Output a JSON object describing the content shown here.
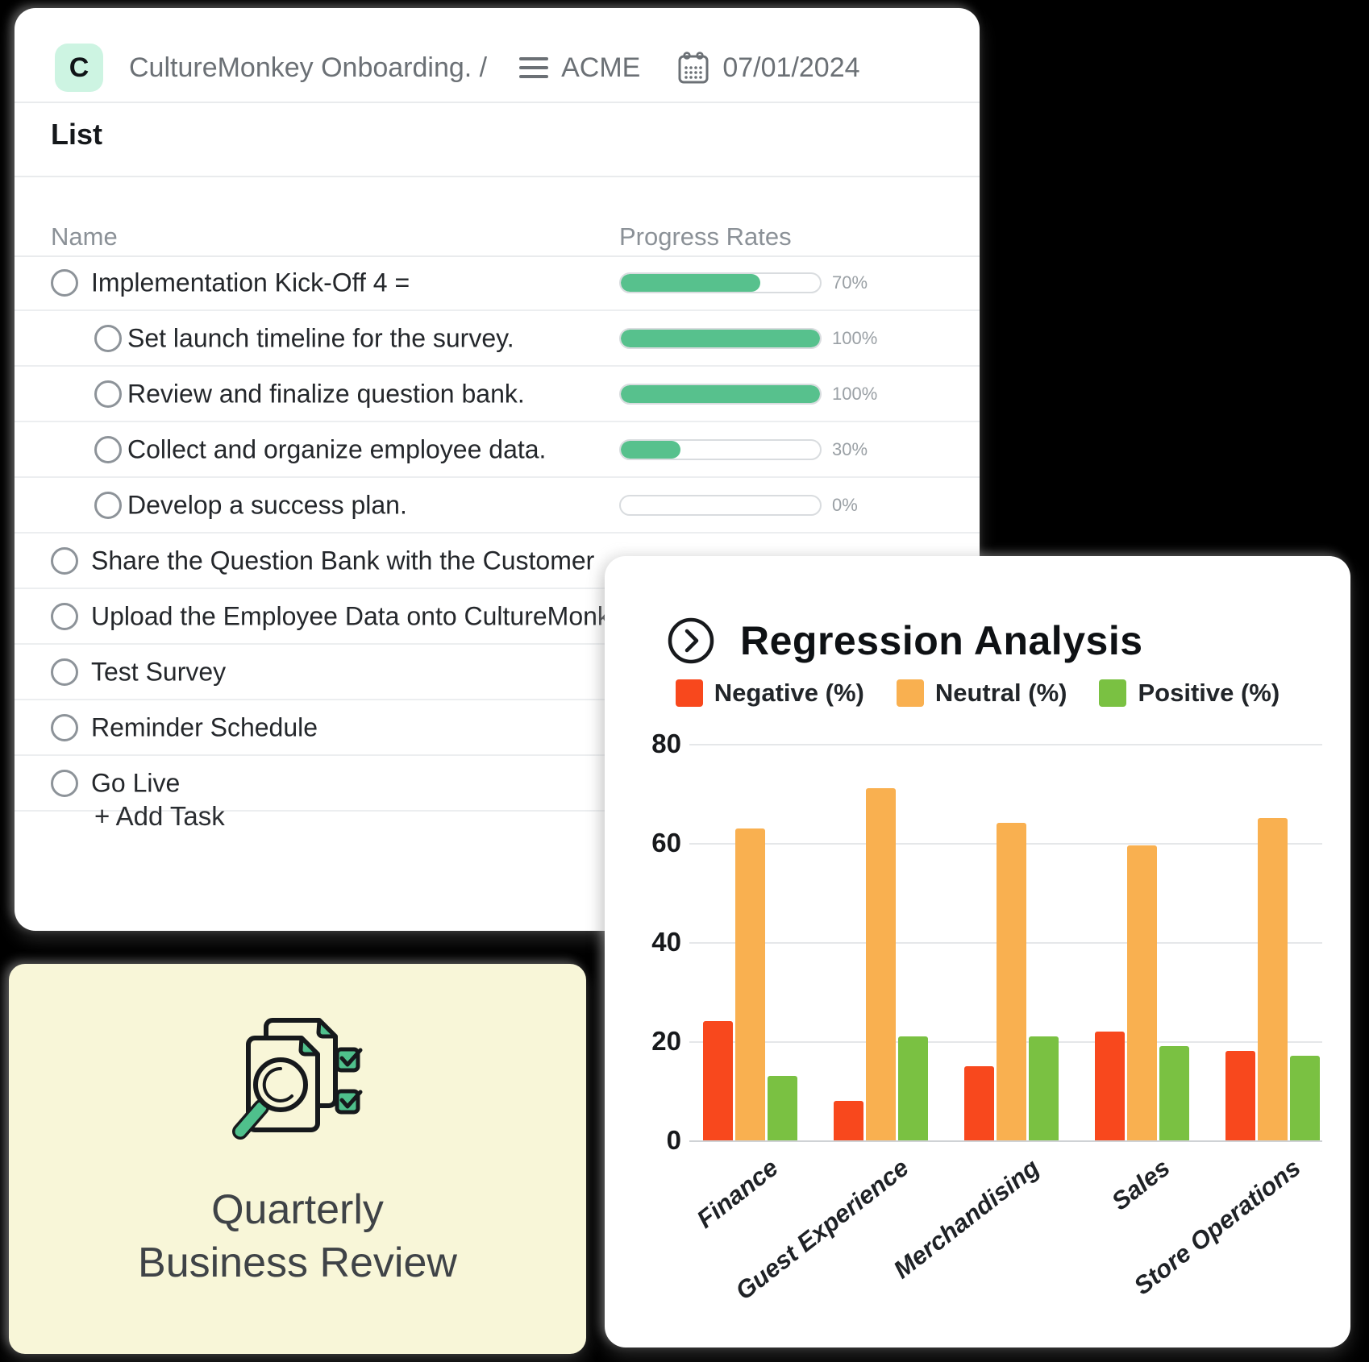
{
  "board": {
    "badge": "C",
    "badge_bg": "#cdf4e2",
    "title": "CultureMonkey Onboarding. /",
    "client": "ACME",
    "date": "07/01/2024",
    "section_title": "List",
    "columns": {
      "name": "Name",
      "progress": "Progress Rates"
    },
    "progress_color": "#57c18d",
    "tasks": [
      {
        "label": "Implementation Kick-Off 4 =",
        "indent": 0,
        "progress": 70,
        "progress_label": "70%"
      },
      {
        "label": "Set launch timeline for the survey.",
        "indent": 1,
        "progress": 100,
        "progress_label": "100%"
      },
      {
        "label": "Review and finalize question bank.",
        "indent": 1,
        "progress": 100,
        "progress_label": "100%"
      },
      {
        "label": "Collect and organize employee data.",
        "indent": 1,
        "progress": 30,
        "progress_label": "30%"
      },
      {
        "label": "Develop a success plan.",
        "indent": 1,
        "progress": 0,
        "progress_label": "0%"
      },
      {
        "label": "Share the Question Bank with the Customer",
        "indent": 0,
        "progress": null,
        "progress_label": ""
      },
      {
        "label": "Upload the Employee Data onto CultureMonkey",
        "indent": 0,
        "progress": null,
        "progress_label": ""
      },
      {
        "label": "Test Survey",
        "indent": 0,
        "progress": null,
        "progress_label": ""
      },
      {
        "label": "Reminder Schedule",
        "indent": 0,
        "progress": null,
        "progress_label": ""
      },
      {
        "label": "Go Live",
        "indent": 0,
        "progress": null,
        "progress_label": ""
      }
    ],
    "add_task_label": "+ Add Task"
  },
  "qbr_card": {
    "line1": "Quarterly",
    "line2": "Business Review",
    "bg": "#f8f6d8",
    "icon": "magnifier-documents-checklist-icon",
    "accent": "#4fc08c"
  },
  "chart_card": {
    "title": "Regression Analysis",
    "icon": "chevron-right-circle-icon"
  },
  "chart_data": {
    "type": "bar",
    "title": "Regression Analysis",
    "categories": [
      "Finance",
      "Guest Experience",
      "Merchandising",
      "Sales",
      "Store Operations"
    ],
    "series": [
      {
        "name": "Negative (%)",
        "color": "#f8481d",
        "values": [
          24,
          8,
          15,
          22,
          18
        ]
      },
      {
        "name": "Neutral (%)",
        "color": "#f9b050",
        "values": [
          63,
          71,
          64,
          59.5,
          65
        ]
      },
      {
        "name": "Positive (%)",
        "color": "#7ac142",
        "values": [
          13,
          21,
          21,
          19,
          17
        ]
      }
    ],
    "xlabel": "",
    "ylabel": "",
    "ylim": [
      0,
      80
    ],
    "yticks": [
      0,
      20,
      40,
      60,
      80
    ],
    "grid": true,
    "legend_position": "top"
  }
}
